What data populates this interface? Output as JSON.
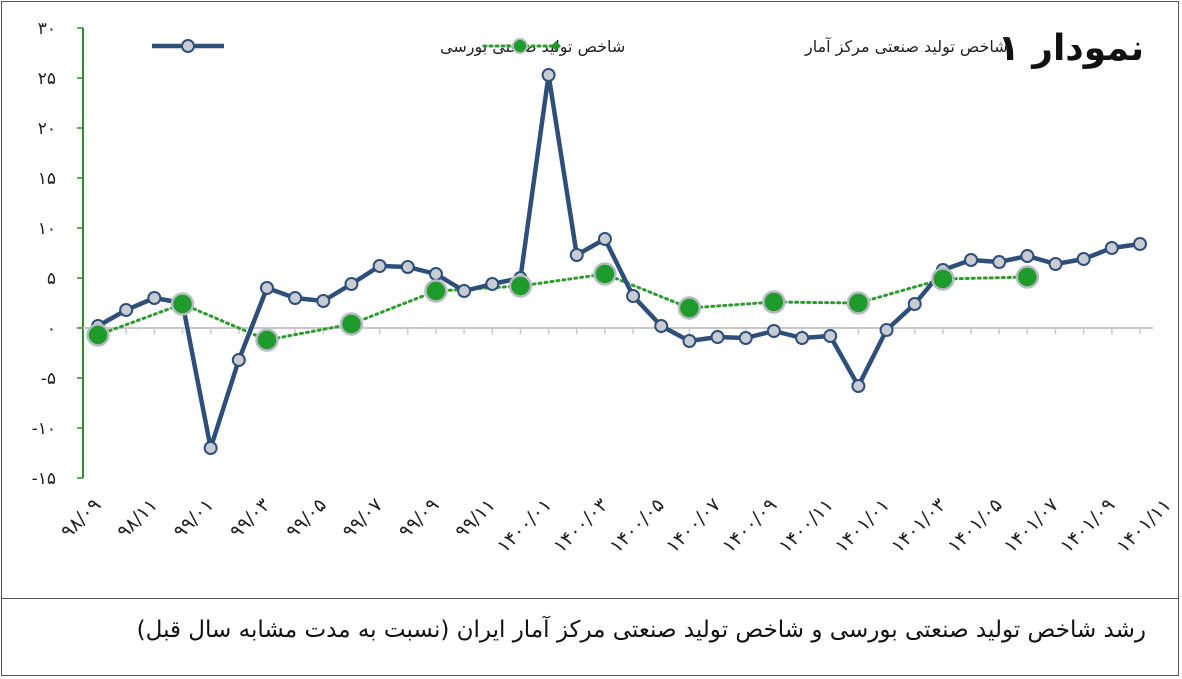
{
  "chart_data": {
    "type": "line",
    "title": "نمودار ۱",
    "caption": "رشد شاخص تولید صنعتی بورسی  و شاخص تولید صنعتی مرکز آمار ایران (نسبت به مدت مشابه سال قبل)",
    "ylim": [
      -15,
      30
    ],
    "yticks": [
      "-۱۵",
      "-۱۰",
      "-۵",
      "۰",
      "۵",
      "۱۰",
      "۱۵",
      "۲۰",
      "۲۵",
      "۳۰"
    ],
    "ytick_values": [
      -15,
      -10,
      -5,
      0,
      5,
      10,
      15,
      20,
      25,
      30
    ],
    "x_ticks": [
      "۹۸/۰۹",
      "۹۸/۱۱",
      "۹۹/۰۱",
      "۹۹/۰۳",
      "۹۹/۰۵",
      "۹۹/۰۷",
      "۹۹/۰۹",
      "۹۹/۱۱",
      "۱۴۰۰/۰۱",
      "۱۴۰۰/۰۳",
      "۱۴۰۰/۰۵",
      "۱۴۰۰/۰۷",
      "۱۴۰۰/۰۹",
      "۱۴۰۰/۱۱",
      "۱۴۰۱/۰۱",
      "۱۴۰۱/۰۳",
      "۱۴۰۱/۰۵",
      "۱۴۰۱/۰۷",
      "۱۴۰۱/۰۹",
      "۱۴۰۱/۱۱"
    ],
    "series": [
      {
        "name": "شاخص تولید صنعتی بورسی",
        "color": "#2e4f7a",
        "values": [
          0.2,
          1.8,
          3.0,
          2.5,
          -12.0,
          -3.2,
          4.0,
          3.0,
          2.7,
          4.4,
          6.2,
          6.1,
          5.4,
          3.7,
          4.4,
          5.0,
          25.3,
          7.3,
          8.9,
          3.2,
          0.2,
          -1.3,
          -0.9,
          -1.0,
          -0.3,
          -1.0,
          -0.8,
          -5.8,
          -0.2,
          2.4,
          5.8,
          6.8,
          6.6,
          7.2,
          6.4,
          6.9,
          8.0,
          8.4
        ]
      },
      {
        "name": "شاخص تولید صنعتی مرکز آمار",
        "color": "#2e9b2e",
        "x_index": [
          0,
          3,
          6,
          9,
          12,
          15,
          18,
          21,
          24,
          27,
          30,
          33
        ],
        "values": [
          -0.7,
          2.4,
          -1.2,
          0.4,
          3.7,
          4.2,
          5.4,
          2.0,
          2.6,
          2.5,
          4.9,
          5.1
        ]
      }
    ]
  }
}
